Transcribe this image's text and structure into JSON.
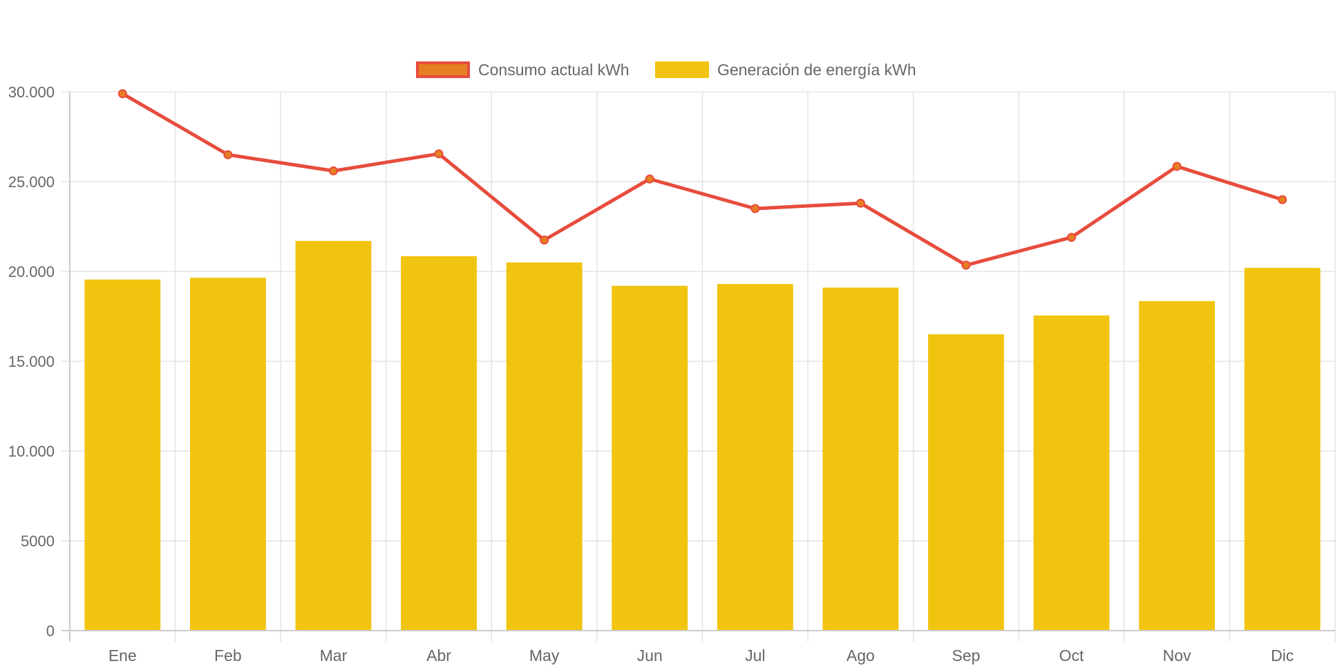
{
  "chart_data": {
    "type": "bar",
    "title": "",
    "xlabel": "",
    "ylabel": "",
    "categories": [
      "Ene",
      "Feb",
      "Mar",
      "Abr",
      "May",
      "Jun",
      "Jul",
      "Ago",
      "Sep",
      "Oct",
      "Nov",
      "Dic"
    ],
    "ylim": [
      0,
      30000
    ],
    "yticks": [
      0,
      5000,
      10000,
      15000,
      20000,
      25000,
      30000
    ],
    "ytick_labels": [
      "0",
      "5000",
      "10.000",
      "15.000",
      "20.000",
      "25.000",
      "30.000"
    ],
    "grid": true,
    "legend_position": "top-center",
    "series": [
      {
        "name": "Consumo actual kWh",
        "type": "line",
        "color": "#e74c3c",
        "point_color": "#e67e22",
        "values": [
          29900,
          26500,
          25600,
          26550,
          21750,
          25150,
          23500,
          23800,
          20350,
          21900,
          25850,
          24000
        ]
      },
      {
        "name": "Generación de energía kWh",
        "type": "bar",
        "color": "#f1c40f",
        "values": [
          19550,
          19650,
          21700,
          20850,
          20500,
          19200,
          19300,
          19100,
          16500,
          17550,
          18350,
          20200
        ]
      }
    ]
  },
  "legend": {
    "items": [
      {
        "label": "Consumo actual kWh",
        "fill": "#e67e22",
        "border": "#e74c3c"
      },
      {
        "label": "Generación de energía kWh",
        "fill": "#f1c40f",
        "border": "#f1c40f"
      }
    ]
  }
}
